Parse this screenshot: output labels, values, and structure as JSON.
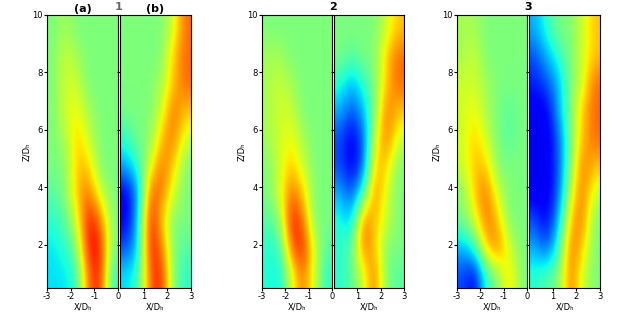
{
  "group_labels": [
    "1",
    "2",
    "3"
  ],
  "chart_data": [
    {
      "type": "heatmap",
      "title": "(a)",
      "xlabel": "X/Dₕ",
      "ylabel": "Z/Dₕ",
      "xlim": [
        -3,
        0
      ],
      "xticks": [
        -3,
        -2,
        -1,
        0
      ],
      "ylim": [
        0.5,
        10
      ],
      "yticks": [
        2,
        4,
        6,
        8,
        10
      ],
      "cell_range": [
        0,
        10
      ],
      "cells": [
        [
          3.5,
          3.5,
          4,
          8,
          9,
          4
        ],
        [
          3.5,
          4,
          5,
          9,
          9,
          5
        ],
        [
          4,
          4.5,
          6,
          9,
          8,
          5
        ],
        [
          4.5,
          5,
          7,
          8,
          6,
          5
        ],
        [
          5,
          5,
          7,
          7,
          5,
          5
        ],
        [
          5,
          5.5,
          7,
          6,
          5,
          5
        ],
        [
          5,
          6,
          6.5,
          5.5,
          5,
          5
        ],
        [
          5,
          6,
          6,
          5,
          5,
          5
        ],
        [
          5,
          6,
          5.5,
          5,
          5,
          5
        ],
        [
          5,
          5.5,
          5,
          5,
          5,
          5
        ]
      ]
    },
    {
      "type": "heatmap",
      "title": "(b)",
      "xlabel": "X/Dₕ",
      "tick_labels": "x",
      "xlim": [
        0,
        3
      ],
      "xticks": [
        1,
        2,
        3
      ],
      "ylim": [
        0.5,
        10
      ],
      "yticks": [
        2,
        4,
        6,
        8,
        10
      ],
      "cell_range": [
        0,
        10
      ],
      "cells": [
        [
          3.5,
          4,
          8,
          9,
          5,
          4
        ],
        [
          2,
          3,
          9,
          8,
          5,
          4.5
        ],
        [
          1,
          3,
          9,
          7,
          5,
          5
        ],
        [
          1,
          2.5,
          8,
          8,
          6,
          5
        ],
        [
          3,
          4,
          6,
          8,
          7,
          5
        ],
        [
          4,
          5,
          5,
          7,
          8,
          6
        ],
        [
          5,
          5,
          5,
          6,
          8,
          7
        ],
        [
          5,
          5,
          5,
          5.5,
          7,
          8
        ],
        [
          5,
          5,
          5,
          5,
          7,
          8
        ],
        [
          5,
          5,
          5,
          5,
          6,
          8
        ]
      ]
    },
    {
      "type": "heatmap",
      "xlabel": "X/Dₕ",
      "ylabel": "Z/Dₕ",
      "xlim": [
        -3,
        0
      ],
      "xticks": [
        -3,
        -2,
        -1,
        0
      ],
      "ylim": [
        0.5,
        10
      ],
      "yticks": [
        2,
        4,
        6,
        8,
        10
      ],
      "cell_range": [
        0,
        10
      ],
      "cells": [
        [
          4,
          3.5,
          6,
          8,
          6,
          4
        ],
        [
          4,
          4,
          8,
          9,
          6,
          4.5
        ],
        [
          4.5,
          5,
          9,
          8,
          5,
          5
        ],
        [
          5,
          6,
          8,
          7,
          5,
          5
        ],
        [
          5,
          6,
          7,
          6,
          5,
          5
        ],
        [
          5.5,
          6,
          6.5,
          5.5,
          5,
          5
        ],
        [
          5.5,
          6,
          6,
          5,
          5,
          5
        ],
        [
          5.5,
          6,
          5.5,
          5,
          5,
          5
        ],
        [
          5.5,
          5.5,
          5,
          5,
          5,
          5
        ],
        [
          5,
          5,
          5,
          5,
          5,
          5
        ]
      ]
    },
    {
      "type": "heatmap",
      "xlabel": "X/Dₕ",
      "tick_labels": "x",
      "xlim": [
        0,
        3
      ],
      "xticks": [
        1,
        2,
        3
      ],
      "ylim": [
        0.5,
        10
      ],
      "yticks": [
        2,
        4,
        6,
        8,
        10
      ],
      "cell_range": [
        0,
        10
      ],
      "cells": [
        [
          4,
          4.5,
          6,
          8,
          5,
          4.5
        ],
        [
          4,
          4.5,
          8,
          7,
          5,
          5
        ],
        [
          4,
          3,
          8,
          7,
          6,
          5
        ],
        [
          3,
          2,
          4,
          8,
          6,
          5
        ],
        [
          2,
          1,
          2,
          7,
          7,
          5
        ],
        [
          2,
          1,
          2,
          6,
          8,
          6
        ],
        [
          3,
          2,
          3,
          5,
          8,
          7
        ],
        [
          4,
          3,
          4,
          5,
          7,
          8
        ],
        [
          5,
          4.5,
          5,
          5,
          7,
          8
        ],
        [
          5,
          5,
          5,
          5,
          6,
          7
        ]
      ]
    },
    {
      "type": "heatmap",
      "xlabel": "X/Dₕ",
      "ylabel": "Z/Dₕ",
      "xlim": [
        -3,
        0
      ],
      "xticks": [
        -3,
        -2,
        -1,
        0
      ],
      "ylim": [
        0.5,
        10
      ],
      "yticks": [
        2,
        4,
        6,
        8,
        10
      ],
      "cell_range": [
        0,
        10
      ],
      "cells": [
        [
          2,
          1,
          4,
          5,
          7,
          5
        ],
        [
          3,
          4,
          7,
          8,
          6,
          5
        ],
        [
          5,
          6,
          8,
          7,
          5,
          5
        ],
        [
          5,
          7,
          8,
          6,
          5,
          5
        ],
        [
          6,
          7,
          7,
          5,
          5,
          5
        ],
        [
          6,
          7,
          6,
          5,
          4.5,
          5
        ],
        [
          6,
          6.5,
          5.5,
          5,
          4.5,
          5
        ],
        [
          6,
          6,
          5.5,
          5,
          5,
          5
        ],
        [
          5.5,
          6,
          5,
          5,
          5,
          5
        ],
        [
          5.5,
          5.5,
          5,
          5,
          5,
          5
        ]
      ]
    },
    {
      "type": "heatmap",
      "xlabel": "X/Dₕ",
      "tick_labels": "x",
      "xlim": [
        0,
        3
      ],
      "xticks": [
        1,
        2,
        3
      ],
      "ylim": [
        0.5,
        10
      ],
      "yticks": [
        2,
        4,
        6,
        8,
        10
      ],
      "cell_range": [
        0,
        10
      ],
      "cells": [
        [
          4,
          4.5,
          5,
          8,
          6,
          5
        ],
        [
          3,
          2,
          4,
          8,
          7,
          5
        ],
        [
          2,
          1,
          3,
          7,
          8,
          5
        ],
        [
          1,
          1,
          2,
          6,
          8,
          6
        ],
        [
          1,
          1,
          2,
          5,
          8,
          7
        ],
        [
          1,
          1,
          2,
          5,
          7,
          8
        ],
        [
          1,
          1,
          3,
          5,
          7,
          8
        ],
        [
          1.5,
          2,
          3,
          5,
          6,
          8
        ],
        [
          2,
          3,
          4,
          5,
          6,
          7
        ],
        [
          3,
          4,
          5,
          5,
          6,
          7
        ]
      ]
    }
  ]
}
